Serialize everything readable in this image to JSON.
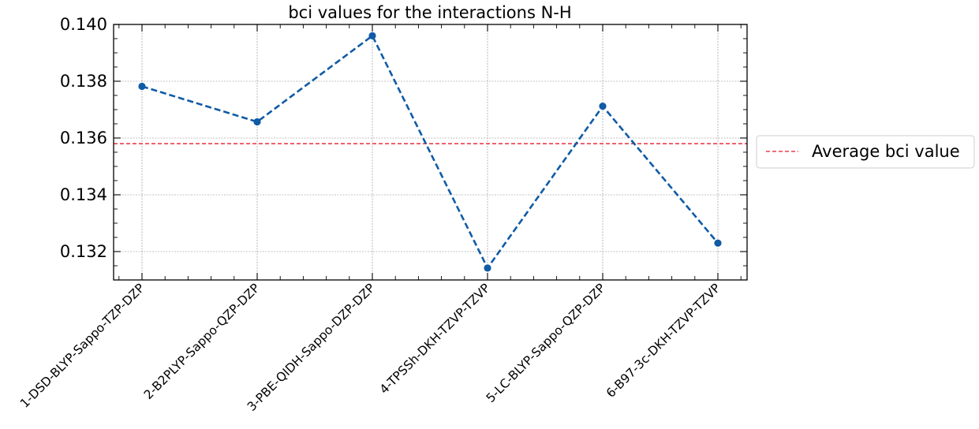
{
  "chart_data": {
    "type": "line",
    "title": "bci values for the interactions N-H",
    "xlabel": "",
    "ylabel": "",
    "categories": [
      "1-DSD-BLYP-Sappo-TZP-DZP",
      "2-B2PLYP-Sappo-QZP-DZP",
      "3-PBE-QIDH-Sappo-DZP-DZP",
      "4-TPSSh-DKH-TZVP-TZVP",
      "5-LC-BLYP-Sappo-QZP-DZP",
      "6-B97-3c-DKH-TZVP-TZVP"
    ],
    "series": [
      {
        "values": [
          0.13782,
          0.13657,
          0.1396,
          0.13142,
          0.13712,
          0.1323
        ],
        "color": "#0f5ba6",
        "line_style": "dashed",
        "marker": "circle"
      }
    ],
    "reference_line": {
      "name": "Average bci value",
      "value": 0.1358,
      "color": "#e8192c",
      "line_style": "dashed"
    },
    "ylim": [
      0.131,
      0.14
    ],
    "yticks": [
      "0.132",
      "0.134",
      "0.136",
      "0.138",
      "0.140"
    ],
    "ytick_values": [
      0.132,
      0.134,
      0.136,
      0.138,
      0.14
    ],
    "grid": true,
    "legend_position": "right, outside plot"
  }
}
